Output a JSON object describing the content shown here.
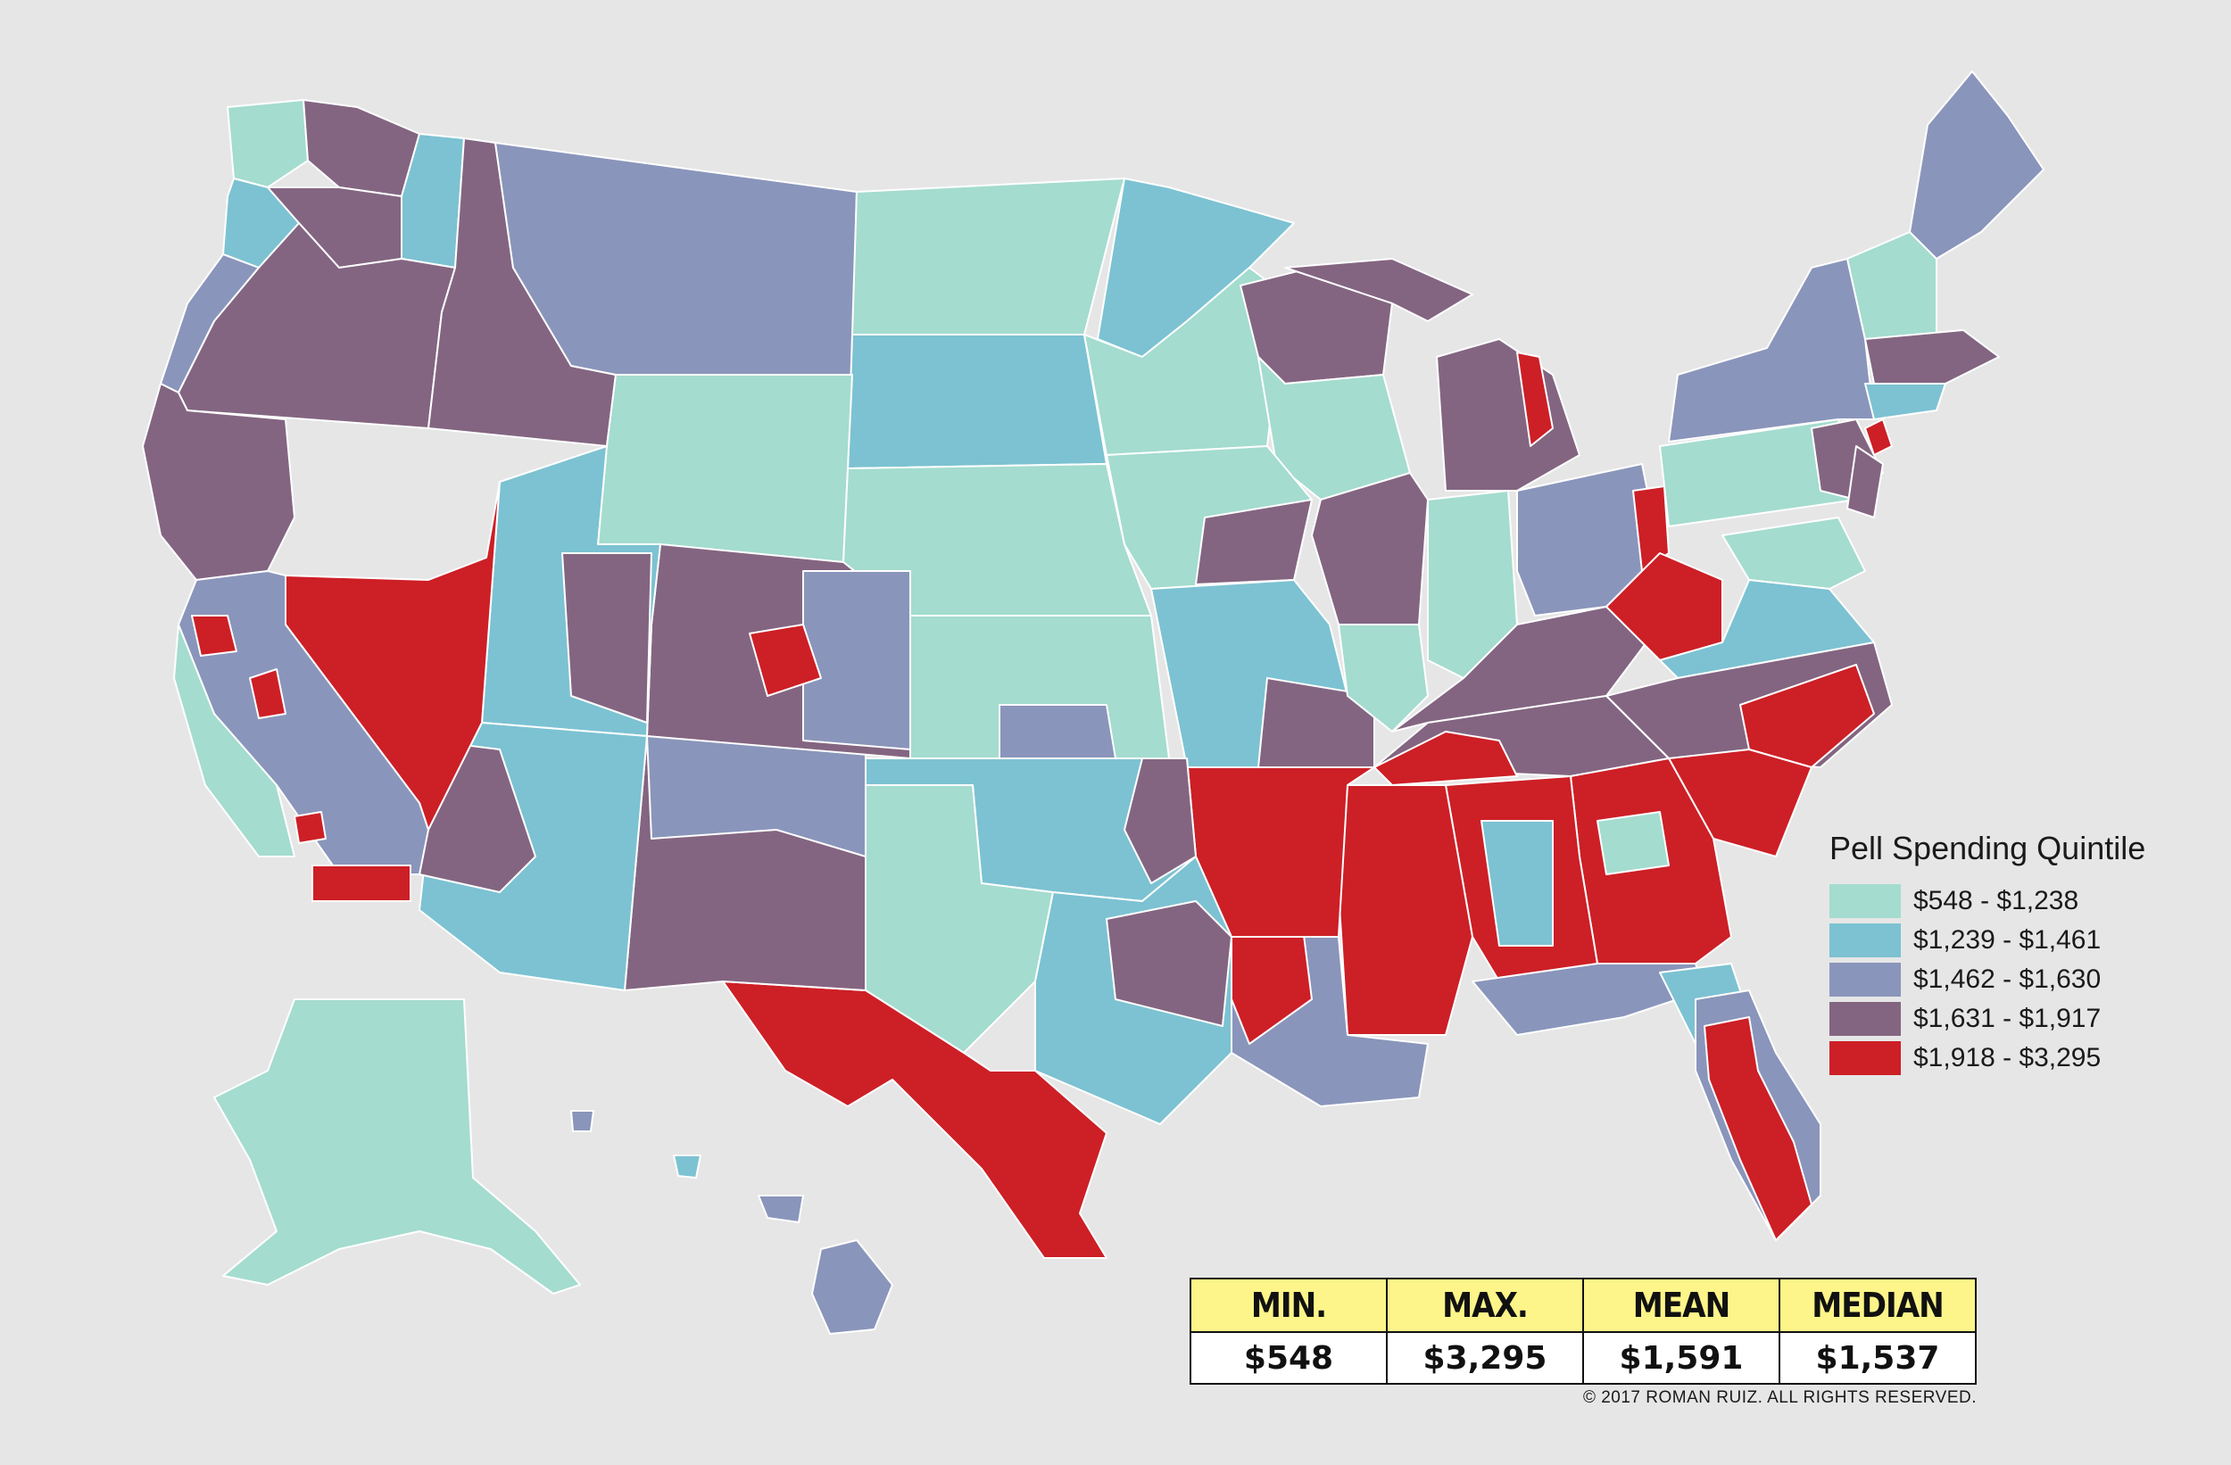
{
  "colors": {
    "background": "#e6e6e6",
    "q1": "#a4dccf",
    "q2": "#7cc2d2",
    "q3": "#8a95bb",
    "q4": "#836581",
    "q5": "#cd1f26",
    "border": "#ffffff",
    "header_yellow": "#fdf589"
  },
  "legend": {
    "title": "Pell Spending Quintile",
    "items": [
      {
        "label": "$548 - $1,238",
        "color": "#a4dccf"
      },
      {
        "label": "$1,239 - $1,461",
        "color": "#7cc2d2"
      },
      {
        "label": "$1,462 - $1,630",
        "color": "#8a95bb"
      },
      {
        "label": "$1,631 - $1,917",
        "color": "#836581"
      },
      {
        "label": "$1,918 - $3,295",
        "color": "#cd1f26"
      }
    ]
  },
  "stats": {
    "headers": [
      "MIN.",
      "MAX.",
      "MEAN",
      "MEDIAN"
    ],
    "values": [
      "$548",
      "$3,295",
      "$1,591",
      "$1,537"
    ]
  },
  "copyright": "© 2017 ROMAN RUIZ. ALL RIGHTS RESERVED."
}
